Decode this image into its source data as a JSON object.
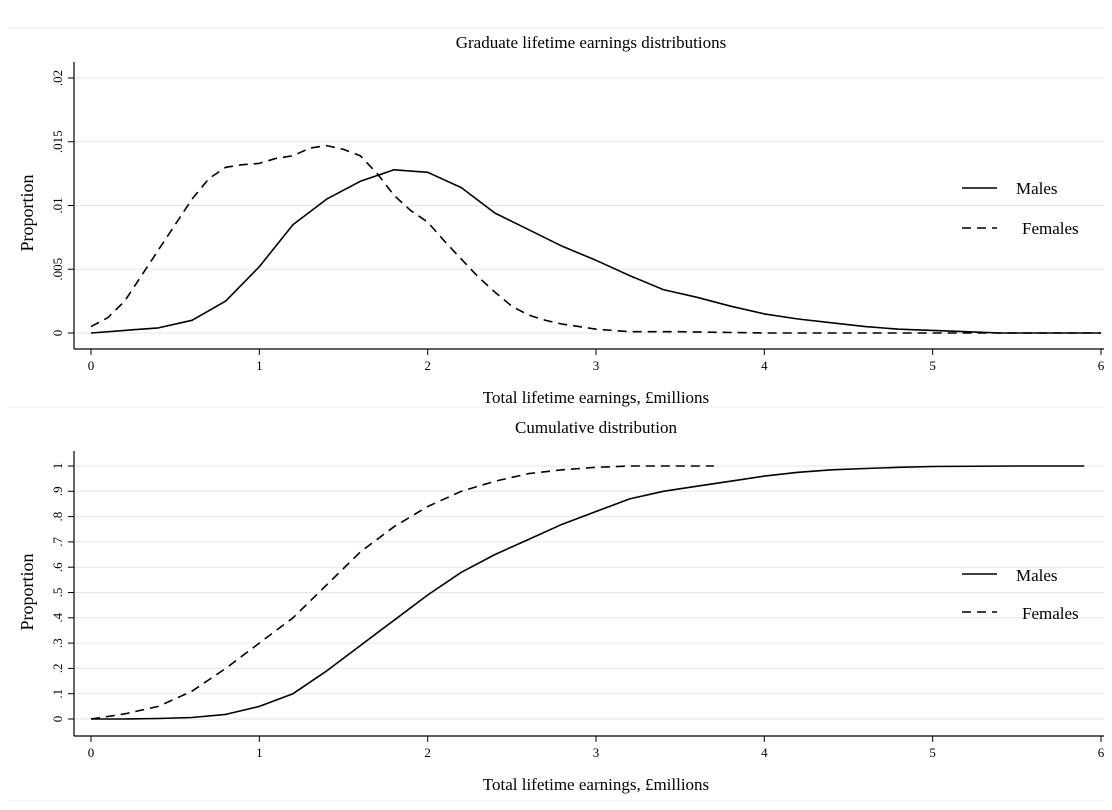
{
  "chart_data": [
    {
      "type": "line",
      "title": "Graduate lifetime earnings distributions",
      "xlabel": "Total lifetime earnings, £millions",
      "ylabel": "Proportion",
      "xlim": [
        0,
        6
      ],
      "ylim": [
        0,
        0.02
      ],
      "xticks": [
        "0",
        "1",
        "2",
        "3",
        "4",
        "5",
        "6"
      ],
      "yticks": [
        "0",
        ".005",
        ".01",
        ".015",
        ".02"
      ],
      "grid": true,
      "legend": "right",
      "series": [
        {
          "name": "Males",
          "style": "solid",
          "x": [
            0,
            0.2,
            0.4,
            0.6,
            0.8,
            1.0,
            1.2,
            1.4,
            1.6,
            1.8,
            2.0,
            2.2,
            2.4,
            2.6,
            2.8,
            3.0,
            3.2,
            3.4,
            3.6,
            3.8,
            4.0,
            4.2,
            4.4,
            4.6,
            4.8,
            5.0,
            5.2,
            5.4,
            5.6,
            5.8,
            6.0
          ],
          "y": [
            0,
            0.0002,
            0.0004,
            0.001,
            0.0025,
            0.0052,
            0.0085,
            0.0105,
            0.0119,
            0.0128,
            0.0126,
            0.0114,
            0.0094,
            0.0081,
            0.0068,
            0.0057,
            0.0045,
            0.0034,
            0.0028,
            0.0021,
            0.0015,
            0.0011,
            0.0008,
            0.0005,
            0.0003,
            0.0002,
            0.0001,
            0,
            0,
            0,
            0
          ]
        },
        {
          "name": "Females",
          "style": "dashed",
          "x": [
            0,
            0.1,
            0.2,
            0.3,
            0.4,
            0.5,
            0.6,
            0.7,
            0.8,
            0.9,
            1.0,
            1.1,
            1.2,
            1.3,
            1.4,
            1.5,
            1.6,
            1.7,
            1.8,
            1.9,
            2.0,
            2.1,
            2.2,
            2.3,
            2.4,
            2.5,
            2.6,
            2.7,
            2.8,
            2.9,
            3.0,
            3.2,
            3.5,
            4.0,
            5.0,
            6.0
          ],
          "y": [
            0.0005,
            0.0012,
            0.0025,
            0.0045,
            0.0065,
            0.0085,
            0.0105,
            0.0121,
            0.013,
            0.0132,
            0.0133,
            0.0137,
            0.0139,
            0.0145,
            0.0147,
            0.0144,
            0.0139,
            0.0125,
            0.0108,
            0.0096,
            0.0087,
            0.0072,
            0.0058,
            0.0044,
            0.0032,
            0.0021,
            0.0014,
            0.001,
            0.0007,
            0.0005,
            0.0003,
            0.0001,
            0.0001,
            0,
            0,
            0
          ]
        }
      ]
    },
    {
      "type": "line",
      "title": "Cumulative distribution",
      "xlabel": "Total lifetime earnings, £millions",
      "ylabel": "Proportion",
      "xlim": [
        0,
        6
      ],
      "ylim": [
        0,
        1
      ],
      "xticks": [
        "0",
        "1",
        "2",
        "3",
        "4",
        "5",
        "6"
      ],
      "yticks": [
        "0",
        ".1",
        ".2",
        ".3",
        ".4",
        ".5",
        ".6",
        ".7",
        ".8",
        ".9",
        "1"
      ],
      "grid": true,
      "legend": "right",
      "series": [
        {
          "name": "Males",
          "style": "solid",
          "x": [
            0,
            0.2,
            0.4,
            0.6,
            0.8,
            1.0,
            1.2,
            1.4,
            1.6,
            1.8,
            2.0,
            2.2,
            2.4,
            2.6,
            2.8,
            3.0,
            3.2,
            3.4,
            3.6,
            3.8,
            4.0,
            4.2,
            4.4,
            4.6,
            4.8,
            5.0,
            5.5,
            5.9
          ],
          "y": [
            0,
            0,
            0.002,
            0.006,
            0.018,
            0.05,
            0.1,
            0.19,
            0.29,
            0.39,
            0.49,
            0.58,
            0.65,
            0.71,
            0.77,
            0.82,
            0.87,
            0.9,
            0.92,
            0.94,
            0.96,
            0.975,
            0.985,
            0.99,
            0.995,
            0.998,
            1.0,
            1.0
          ]
        },
        {
          "name": "Females",
          "style": "dashed",
          "x": [
            0,
            0.2,
            0.4,
            0.6,
            0.8,
            1.0,
            1.2,
            1.4,
            1.6,
            1.8,
            2.0,
            2.2,
            2.4,
            2.6,
            2.8,
            3.0,
            3.2,
            3.5,
            3.7
          ],
          "y": [
            0,
            0.02,
            0.05,
            0.11,
            0.2,
            0.3,
            0.4,
            0.53,
            0.66,
            0.76,
            0.84,
            0.9,
            0.94,
            0.97,
            0.985,
            0.995,
            1.0,
            1.0,
            1.0
          ]
        }
      ]
    }
  ]
}
